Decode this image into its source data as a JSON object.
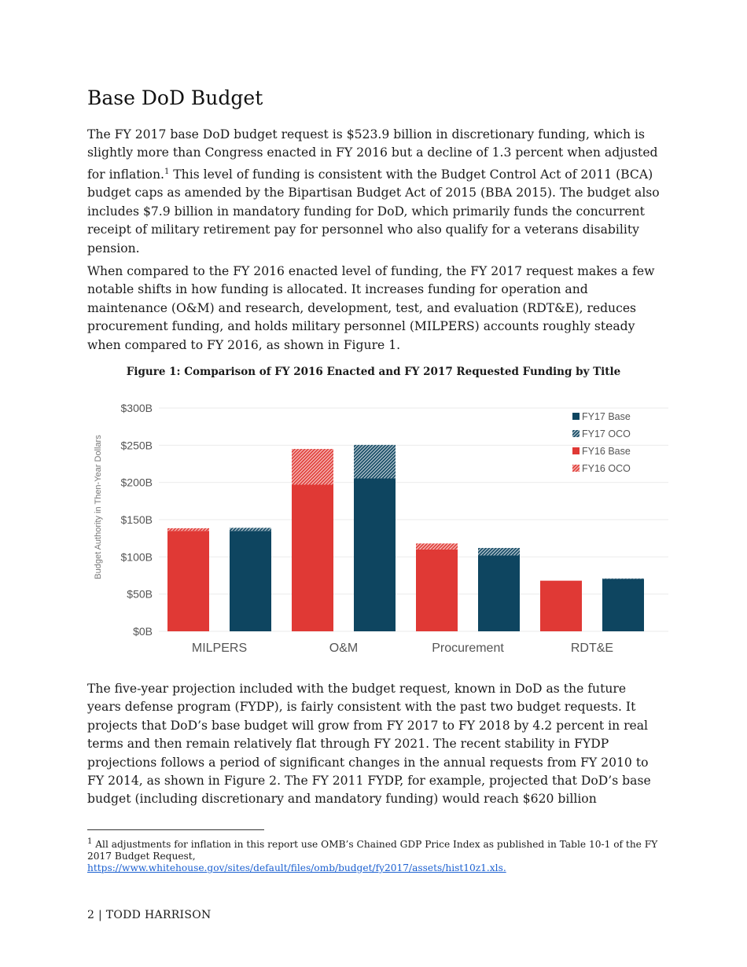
{
  "heading": "Base DoD Budget",
  "paragraphs": [
    "The FY 2017 base DoD budget request is $523.9 billion in discretionary funding, which is slightly more than Congress enacted in FY 2016 but a decline of 1.3 percent when adjusted for inflation.",
    "1",
    " This level of funding is consistent with the Budget Control Act of 2011 (BCA) budget caps as amended by the Bipartisan Budget Act of 2015 (BBA 2015). The budget also includes $7.9 billion in mandatory funding for DoD, which primarily funds the concurrent receipt of military retirement pay for personnel who also qualify for a veterans disability pension.",
    "When compared to the FY 2016 enacted level of funding, the FY 2017 request makes a few notable shifts in how funding is allocated. It increases funding for operation and maintenance (O&M) and research, development, test, and evaluation (RDT&E), reduces procurement funding, and holds military personnel (MILPERS) accounts roughly steady when compared to FY 2016, as shown in Figure 1.",
    "The five-year projection included with the budget request, known in DoD as the future years defense program (FYDP), is fairly consistent with the past two budget requests. It projects that DoD’s base budget will grow from FY 2017 to FY 2018 by 4.2 percent in real terms and then remain relatively flat through FY 2021. The recent stability in FYDP projections follows a period of significant changes in the annual requests from FY 2010 to FY 2014, as shown in Figure 2. The FY 2011 FYDP, for example, projected that DoD’s base budget (including discretionary and mandatory funding) would reach $620 billion"
  ],
  "figure_caption": "Figure 1: Comparison of FY 2016 Enacted and FY 2017 Requested Funding by Title",
  "chart_data": {
    "type": "bar",
    "stacked": true,
    "categories": [
      "MILPERS",
      "O&M",
      "Procurement",
      "RDT&E"
    ],
    "ylabel": "Budget Authority in Then-Year Dollars",
    "ylim": [
      0,
      300
    ],
    "yticks": [
      "$0B",
      "$50B",
      "$100B",
      "$150B",
      "$200B",
      "$250B",
      "$300B"
    ],
    "ytick_values": [
      0,
      50,
      100,
      150,
      200,
      250,
      300
    ],
    "grid": true,
    "legend_position": "top-right",
    "series": [
      {
        "name": "FY16 Base",
        "group": "FY16",
        "pattern": "solid",
        "color": "#e03935",
        "values": [
          135,
          197,
          110,
          68
        ]
      },
      {
        "name": "FY16 OCO",
        "group": "FY16",
        "pattern": "hatch",
        "color": "#e03935",
        "values": [
          3.5,
          48,
          8,
          0
        ]
      },
      {
        "name": "FY17 Base",
        "group": "FY17",
        "pattern": "solid",
        "color": "#0e4560",
        "values": [
          135,
          205.5,
          102,
          70.5
        ]
      },
      {
        "name": "FY17 OCO",
        "group": "FY17",
        "pattern": "hatch",
        "color": "#0e4560",
        "values": [
          4,
          45,
          10,
          0.5
        ]
      }
    ],
    "legend_order": [
      "FY17 Base",
      "FY17 OCO",
      "FY16 Base",
      "FY16 OCO"
    ]
  },
  "footnote": {
    "number": "1",
    "text": " All adjustments for inflation in this report use OMB’s Chained GDP Price Index as published in Table 10-1 of the FY 2017 Budget Request,",
    "link": "https://www.whitehouse.gov/sites/default/files/omb/budget/fy2017/assets/hist10z1.xls."
  },
  "footer": "2 | TODD HARRISON"
}
